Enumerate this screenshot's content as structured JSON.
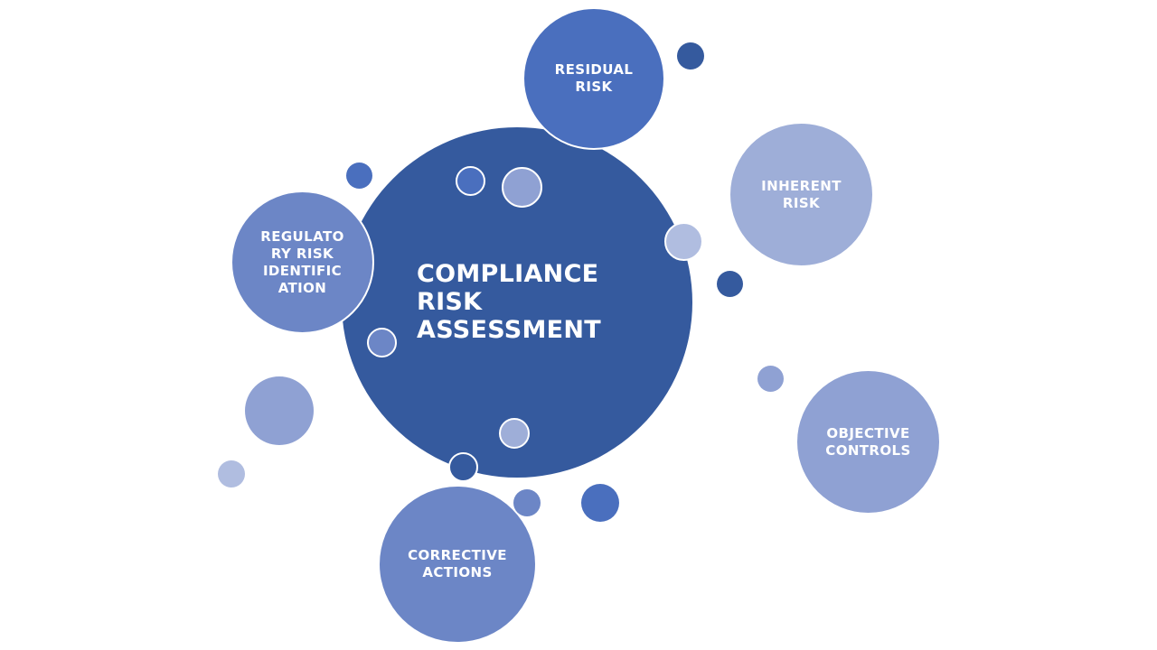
{
  "diagram": {
    "center": {
      "title": "COMPLIANCE\nRISK\nASSESSMENT",
      "color": "#355A9E"
    },
    "nodes": [
      {
        "id": "residual-risk",
        "label": "RESIDUAL\nRISK",
        "color": "#4A6FBE"
      },
      {
        "id": "inherent-risk",
        "label": "INHERENT\nRISK",
        "color": "#9EAED8"
      },
      {
        "id": "objective-controls",
        "label": "OBJECTIVE\nCONTROLS",
        "color": "#8FA1D3"
      },
      {
        "id": "corrective-actions",
        "label": "CORRECTIVE\nACTIONS",
        "color": "#6C86C6"
      },
      {
        "id": "regulatory-risk-identification",
        "label": "REGULATO\nRY RISK\nIDENTIFIC\nATION",
        "color": "#6C86C6"
      }
    ],
    "palette": {
      "dark_blue": "#355A9E",
      "mid_blue": "#4A6FBE",
      "medium_blue": "#6C86C6",
      "soft_blue": "#8FA1D3",
      "light_blue": "#B0BDE0",
      "background": "#FFFFFF"
    }
  }
}
